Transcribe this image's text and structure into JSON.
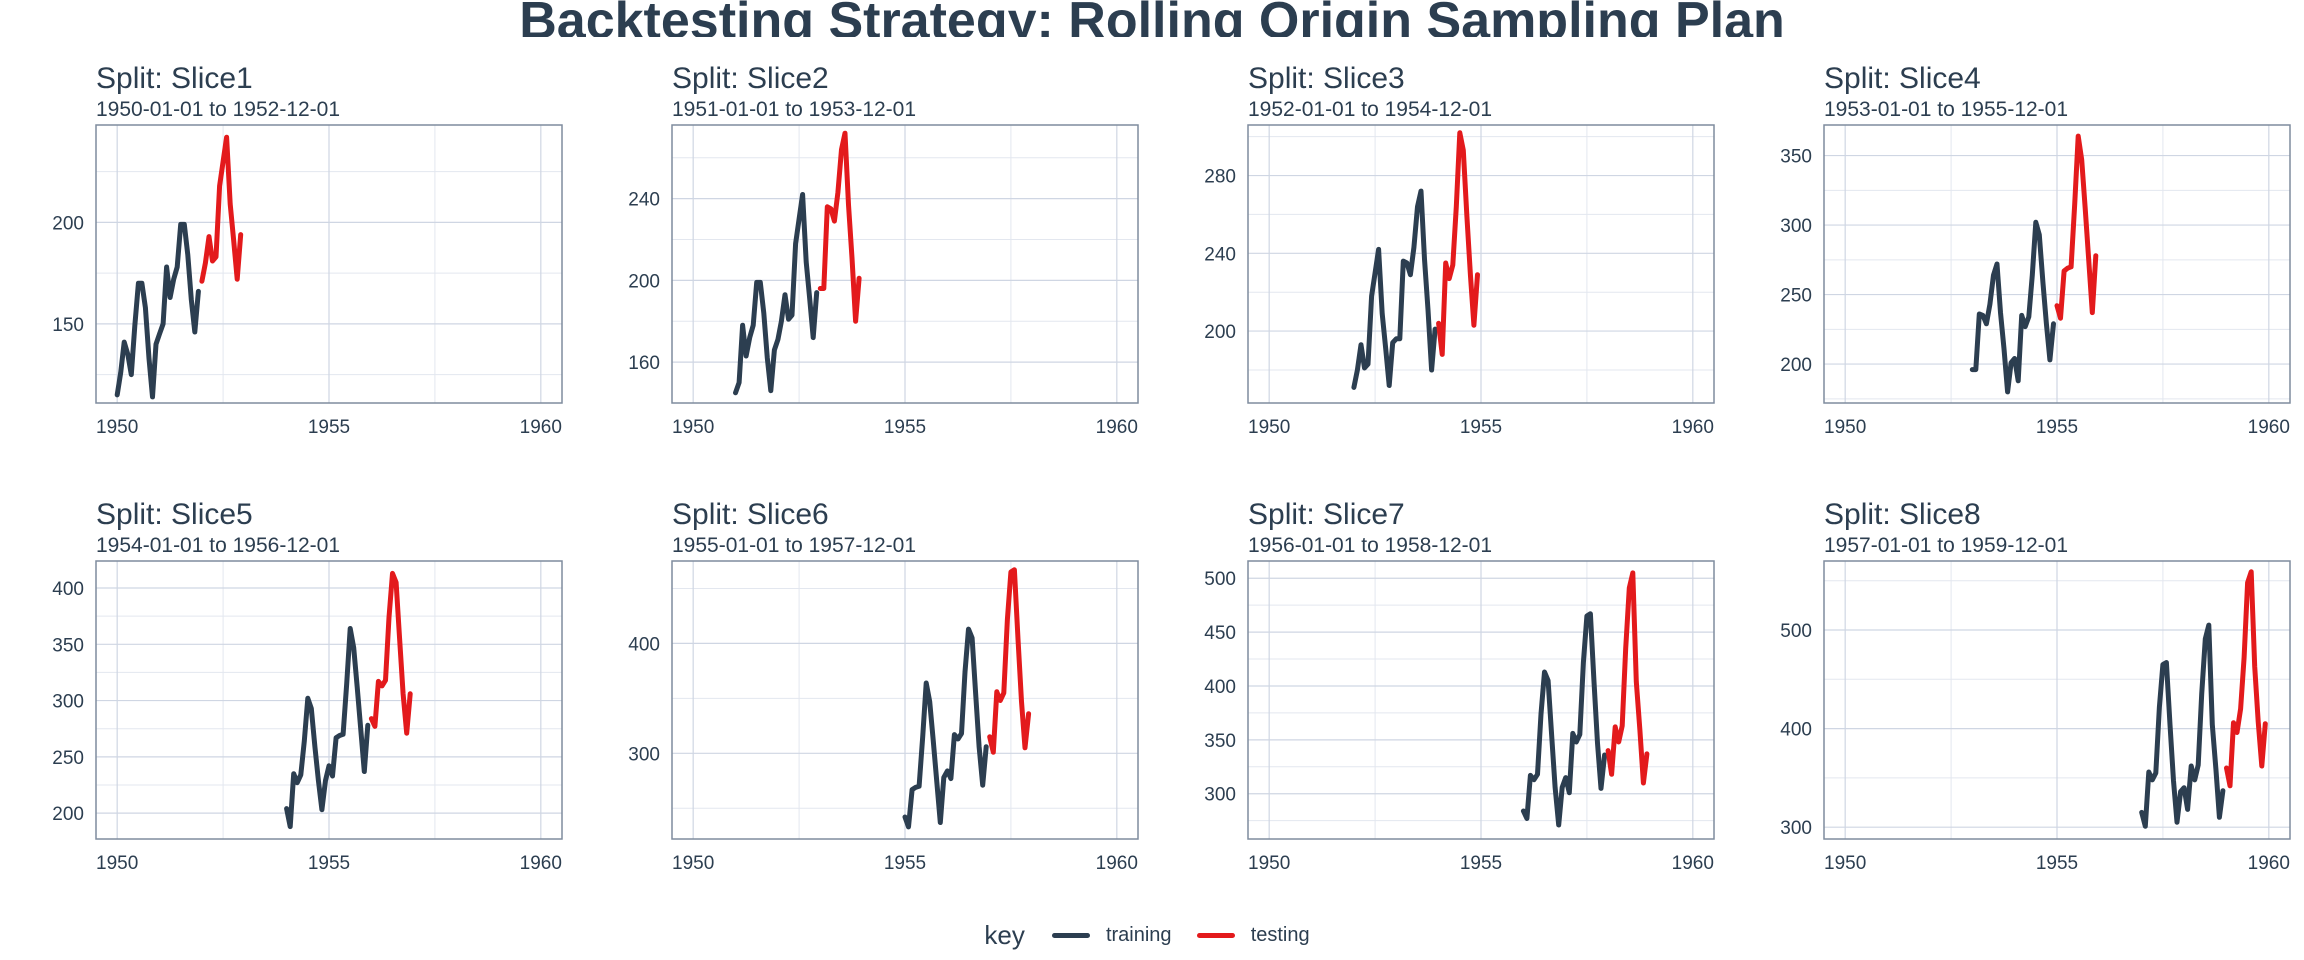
{
  "title": "Backtesting Strategy: Rolling Origin Sampling Plan",
  "legend": {
    "title": "key",
    "items": [
      {
        "label": "training",
        "color": "#2c3e50"
      },
      {
        "label": "testing",
        "color": "#e31a1c"
      }
    ]
  },
  "chart_data": {
    "type": "line",
    "x_axis": {
      "ticks": [
        1950,
        1955,
        1960
      ],
      "range": [
        1949.5,
        1960.5
      ]
    },
    "grid": true,
    "legend_position": "bottom",
    "colors": {
      "training": "#2c3e50",
      "testing": "#e31a1c"
    },
    "panels": [
      {
        "title": "Split: Slice1",
        "subtitle": "1950-01-01 to 1952-12-01",
        "ylim": [
          111,
          248
        ],
        "yticks": [
          150,
          200
        ],
        "series": [
          {
            "name": "training",
            "start": 1950.0,
            "values": [
              115,
              126,
              141,
              135,
              125,
              149,
              170,
              170,
              158,
              133,
              114,
              140,
              145,
              150,
              178,
              163,
              172,
              178,
              199,
              199,
              184,
              162,
              146,
              166
            ]
          },
          {
            "name": "testing",
            "start": 1952.0,
            "values": [
              171,
              180,
              193,
              181,
              183,
              218,
              230,
              242,
              209,
              191,
              172,
              194
            ]
          }
        ]
      },
      {
        "title": "Split: Slice2",
        "subtitle": "1951-01-01 to 1953-12-01",
        "ylim": [
          140,
          276
        ],
        "yticks": [
          160,
          200,
          240
        ],
        "series": [
          {
            "name": "training",
            "start": 1951.0,
            "values": [
              145,
              150,
              178,
              163,
              172,
              178,
              199,
              199,
              184,
              162,
              146,
              166,
              171,
              180,
              193,
              181,
              183,
              218,
              230,
              242,
              209,
              191,
              172,
              194
            ]
          },
          {
            "name": "testing",
            "start": 1953.0,
            "values": [
              196,
              196,
              236,
              235,
              229,
              243,
              264,
              272,
              237,
              211,
              180,
              201
            ]
          }
        ]
      },
      {
        "title": "Split: Slice3",
        "subtitle": "1952-01-01 to 1954-12-01",
        "ylim": [
          163,
          306
        ],
        "yticks": [
          200,
          240,
          280
        ],
        "series": [
          {
            "name": "training",
            "start": 1952.0,
            "values": [
              171,
              180,
              193,
              181,
              183,
              218,
              230,
              242,
              209,
              191,
              172,
              194,
              196,
              196,
              236,
              235,
              229,
              243,
              264,
              272,
              237,
              211,
              180,
              201
            ]
          },
          {
            "name": "testing",
            "start": 1954.0,
            "values": [
              204,
              188,
              235,
              227,
              234,
              264,
              302,
              293,
              259,
              229,
              203,
              229
            ]
          }
        ]
      },
      {
        "title": "Split: Slice4",
        "subtitle": "1953-01-01 to 1955-12-01",
        "ylim": [
          172,
          372
        ],
        "yticks": [
          200,
          250,
          300,
          350
        ],
        "series": [
          {
            "name": "training",
            "start": 1953.0,
            "values": [
              196,
              196,
              236,
              235,
              229,
              243,
              264,
              272,
              237,
              211,
              180,
              201,
              204,
              188,
              235,
              227,
              234,
              264,
              302,
              293,
              259,
              229,
              203,
              229
            ]
          },
          {
            "name": "testing",
            "start": 1955.0,
            "values": [
              242,
              233,
              267,
              269,
              270,
              315,
              364,
              347,
              312,
              274,
              237,
              278
            ]
          }
        ]
      },
      {
        "title": "Split: Slice5",
        "subtitle": "1954-01-01 to 1956-12-01",
        "ylim": [
          177,
          424
        ],
        "yticks": [
          200,
          250,
          300,
          350,
          400
        ],
        "series": [
          {
            "name": "training",
            "start": 1954.0,
            "values": [
              204,
              188,
              235,
              227,
              234,
              264,
              302,
              293,
              259,
              229,
              203,
              229,
              242,
              233,
              267,
              269,
              270,
              315,
              364,
              347,
              312,
              274,
              237,
              278
            ]
          },
          {
            "name": "testing",
            "start": 1956.0,
            "values": [
              284,
              277,
              317,
              313,
              318,
              374,
              413,
              405,
              355,
              306,
              271,
              306
            ]
          }
        ]
      },
      {
        "title": "Split: Slice6",
        "subtitle": "1955-01-01 to 1957-12-01",
        "ylim": [
          222,
          475
        ],
        "yticks": [
          300,
          400
        ],
        "series": [
          {
            "name": "training",
            "start": 1955.0,
            "values": [
              242,
              233,
              267,
              269,
              270,
              315,
              364,
              347,
              312,
              274,
              237,
              278,
              284,
              277,
              317,
              313,
              318,
              374,
              413,
              405,
              355,
              306,
              271,
              306
            ]
          },
          {
            "name": "testing",
            "start": 1957.0,
            "values": [
              315,
              301,
              356,
              348,
              355,
              422,
              465,
              467,
              404,
              347,
              305,
              336
            ]
          }
        ]
      },
      {
        "title": "Split: Slice7",
        "subtitle": "1956-01-01 to 1958-12-01",
        "ylim": [
          258,
          516
        ],
        "yticks": [
          300,
          350,
          400,
          450,
          500
        ],
        "series": [
          {
            "name": "training",
            "start": 1956.0,
            "values": [
              284,
              277,
              317,
              313,
              318,
              374,
              413,
              405,
              355,
              306,
              271,
              306,
              315,
              301,
              356,
              348,
              355,
              422,
              465,
              467,
              404,
              347,
              305,
              336
            ]
          },
          {
            "name": "testing",
            "start": 1958.0,
            "values": [
              340,
              318,
              362,
              348,
              363,
              435,
              491,
              505,
              404,
              359,
              310,
              337
            ]
          }
        ]
      },
      {
        "title": "Split: Slice8",
        "subtitle": "1957-01-01 to 1959-12-01",
        "ylim": [
          288,
          570
        ],
        "yticks": [
          300,
          400,
          500
        ],
        "series": [
          {
            "name": "training",
            "start": 1957.0,
            "values": [
              315,
              301,
              356,
              348,
              355,
              422,
              465,
              467,
              404,
              347,
              305,
              336,
              340,
              318,
              362,
              348,
              363,
              435,
              491,
              505,
              404,
              359,
              310,
              337
            ]
          },
          {
            "name": "testing",
            "start": 1959.0,
            "values": [
              360,
              342,
              406,
              396,
              420,
              472,
              548,
              559,
              463,
              407,
              362,
              405
            ]
          }
        ]
      }
    ]
  }
}
